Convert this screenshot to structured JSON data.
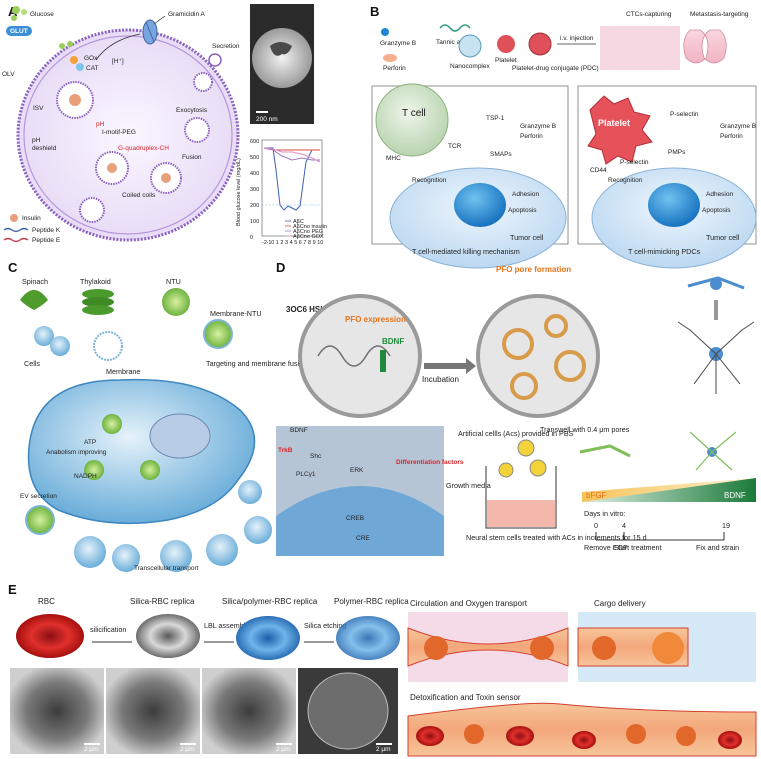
{
  "panels": {
    "A": {
      "label": "A",
      "glucose": "Glucose",
      "glut": "GLUT",
      "gramicidin": "Gramicidin A",
      "gox": "GOx",
      "cat": "CAT",
      "h": "[H⁺]",
      "olv": "OLV",
      "isv": "ISV",
      "secretion": "Secretion",
      "exocytosis": "Exocytosis",
      "imotif": "I-motif-PEG",
      "ph": "pH",
      "phdeshield": "pH",
      "deshield": "deshield",
      "gquad": "G-quadruplex-CH",
      "fusion": "Fusion",
      "coiled": "Coiled coils",
      "insulin": "Insulin",
      "pepk": "Peptide K",
      "pepe": "Peptide E",
      "scalebar": "200 nm",
      "chart_ylabel": "Blood glucose level (mg/dL)",
      "chart_yticks": [
        "600",
        "500",
        "400",
        "300",
        "200",
        "100",
        "0"
      ],
      "chart_xticks": [
        "-2",
        "-1",
        "0",
        "1",
        "2",
        "3",
        "4",
        "5",
        "6",
        "7",
        "8",
        "9",
        "10"
      ],
      "legend": [
        "AβC",
        "AβCno insulin",
        "AβCno PEG",
        "AβCno GOX"
      ]
    },
    "B": {
      "label": "B",
      "granzyme": "Granzyme B",
      "perforin": "Perforin",
      "tannic": "Tannic acid",
      "nanocomplex": "Nanocomplex",
      "platelet": "Platelet",
      "pdc": "Platelet-drug conjugate (PDC)",
      "iv": "i.v. injection",
      "ctc": "CTCs-capturing",
      "meta": "Metastasis-targeting",
      "tcell": "T cell",
      "tsp": "TSP-1",
      "granzyme2": "Granzyme B",
      "perforin2": "Perforin",
      "tcr": "TCR",
      "smaps": "SMAPs",
      "mhc": "MHC",
      "recognition": "Recognition",
      "adhesion": "Adhesion",
      "apoptosis": "Apoptosis",
      "tumor": "Tumor cell",
      "caption1": "T cell-mediated killing mechanism",
      "platelet2": "Platelet",
      "pselectin": "P-selectin",
      "granzyme3": "Granzyme B",
      "perforin3": "Perforin",
      "pmps": "PMPs",
      "pselectin2": "P-selectin",
      "cd44": "CD44",
      "recognition2": "Recognition",
      "adhesion2": "Adhesion",
      "apoptosis2": "Apoptosis",
      "tumor2": "Tumor cell",
      "caption2": "T cell-mimicking PDCs"
    },
    "C": {
      "label": "C",
      "spinach": "Spinach",
      "thylakoid": "Thylakoid",
      "ntu": "NTU",
      "membranentu": "Membrane-NTU",
      "cells": "Cells",
      "membrane": "Membrane",
      "targeting": "Targeting and membrane fusion",
      "atp": "ATP",
      "anabolism": "Anabolism improving",
      "nadph": "NADPH",
      "ev": "EV secretion",
      "transcell": "Transcellular transport"
    },
    "D": {
      "label": "D",
      "hsl": "3OC6 HSL",
      "pfo": "PFO expression",
      "pfopore": "PFO pore formation",
      "bdnf": "BDNF",
      "incubation": "Incubation",
      "trkb": "TrkB",
      "bdnf2": "BDNF",
      "shc": "Shc",
      "plcy": "PLCγ1",
      "erk": "ERK",
      "creb": "CREB",
      "cre": "CRE",
      "diff": "Differentiation factors",
      "acs": "Artificial cellls (Acs) provided in PBS",
      "transwell": "Transwell with 0.4 μm pores",
      "growth": "Growth media",
      "nsc": "Neural stem cells treated with ACs in increments for 15 d",
      "bfgf": "bFGF",
      "bdnf3": "BDNF",
      "days": "Days in vitro:",
      "d0": "0",
      "d4": "4",
      "d19": "19",
      "remove": "Remove EGF",
      "start": "Start treatment",
      "fix": "Fix and strain"
    },
    "E": {
      "label": "E",
      "rbc": "RBC",
      "silica_rbc": "Silica-RBC replica",
      "silica_poly": "Silica/polymer-RBC replica",
      "poly": "Polymer-RBC replica",
      "silicification": "silicification",
      "lbl": "LBL assembly",
      "etching": "Silica etching",
      "scale": "2 μm",
      "circ": "Circulation and Oxygen transport",
      "cargo": "Cargo delivery",
      "detox": "Detoxification and Toxin sensor"
    }
  },
  "colors": {
    "membrane_purple": "#7d4fb5",
    "cell_pink": "#f0e4f6",
    "tumor_blue": "#d7e9f7",
    "orange": "#e8731a",
    "green": "#1f8a3c",
    "vessel": "#e0a199"
  }
}
